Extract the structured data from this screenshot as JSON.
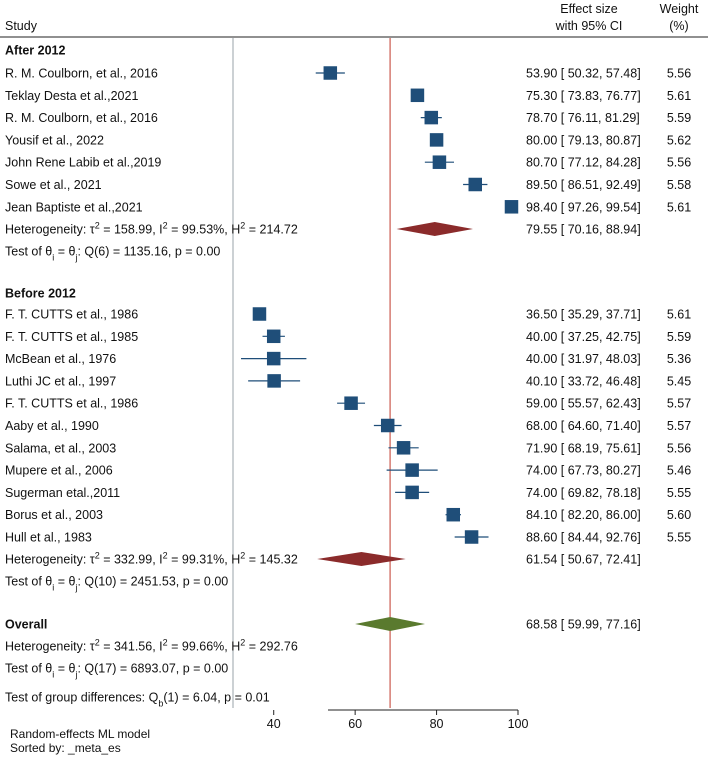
{
  "header": {
    "study": "Study",
    "effect_line1": "Effect size",
    "effect_line2": "with 95% CI",
    "weight_line1": "Weight",
    "weight_line2": "(%)"
  },
  "colors": {
    "study_box": "#1f4e79",
    "subgroup_diamond": "#8b2b2b",
    "overall_diamond": "#5a7a2e",
    "null_line": "#9aa3a8",
    "overall_line": "#c0392b"
  },
  "chart_data": {
    "type": "forest",
    "title": "",
    "xlabel": "",
    "xlim": [
      30,
      100
    ],
    "xticks": [
      40,
      60,
      80,
      100
    ],
    "null_line_x": 30,
    "overall_line_x": 68.58,
    "groups": [
      {
        "label": "After 2012",
        "studies": [
          {
            "study": "R. M. Coulborn, et al., 2016",
            "es": 53.9,
            "lo": 50.32,
            "hi": 57.48,
            "ci_text": "53.90 [ 50.32, 57.48]",
            "weight": "5.56"
          },
          {
            "study": "Teklay Desta et al.,2021",
            "es": 75.3,
            "lo": 73.83,
            "hi": 76.77,
            "ci_text": "75.30 [ 73.83, 76.77]",
            "weight": "5.61"
          },
          {
            "study": "R. M. Coulborn, et al., 2016",
            "es": 78.7,
            "lo": 76.11,
            "hi": 81.29,
            "ci_text": "78.70 [ 76.11, 81.29]",
            "weight": "5.59"
          },
          {
            "study": "Yousif et al., 2022",
            "es": 80.0,
            "lo": 79.13,
            "hi": 80.87,
            "ci_text": "80.00 [ 79.13, 80.87]",
            "weight": "5.62"
          },
          {
            "study": "John Rene Labib et al.,2019",
            "es": 80.7,
            "lo": 77.12,
            "hi": 84.28,
            "ci_text": "80.70 [ 77.12, 84.28]",
            "weight": "5.56"
          },
          {
            "study": "Sowe  et al., 2021",
            "es": 89.5,
            "lo": 86.51,
            "hi": 92.49,
            "ci_text": "89.50 [ 86.51, 92.49]",
            "weight": "5.58"
          },
          {
            "study": "Jean Baptiste et al.,2021",
            "es": 98.4,
            "lo": 97.26,
            "hi": 99.54,
            "ci_text": "98.40 [ 97.26, 99.54]",
            "weight": "5.61"
          }
        ],
        "summary": {
          "es": 79.55,
          "lo": 70.16,
          "hi": 88.94,
          "ci_text": "79.55 [ 70.16, 88.94]"
        },
        "heterogeneity": "Heterogeneity: τ² = 158.99, I² = 99.53%, H² = 214.72",
        "test": "Test of θᵢ = θⱼ: Q(6) = 1135.16, p = 0.00"
      },
      {
        "label": "Before 2012",
        "studies": [
          {
            "study": "F. T. CUTTS  et al., 1986",
            "es": 36.5,
            "lo": 35.29,
            "hi": 37.71,
            "ci_text": "36.50 [ 35.29, 37.71]",
            "weight": "5.61"
          },
          {
            "study": "F. T. CUTTS  et al., 1985",
            "es": 40.0,
            "lo": 37.25,
            "hi": 42.75,
            "ci_text": "40.00 [ 37.25, 42.75]",
            "weight": "5.59"
          },
          {
            "study": "McBean  et al., 1976",
            "es": 40.0,
            "lo": 31.97,
            "hi": 48.03,
            "ci_text": "40.00 [ 31.97, 48.03]",
            "weight": "5.36"
          },
          {
            "study": "Luthi JC et al.,  1997",
            "es": 40.1,
            "lo": 33.72,
            "hi": 46.48,
            "ci_text": "40.10 [ 33.72, 46.48]",
            "weight": "5.45"
          },
          {
            "study": "F. T. CUTTS  et al., 1986",
            "es": 59.0,
            "lo": 55.57,
            "hi": 62.43,
            "ci_text": "59.00 [ 55.57, 62.43]",
            "weight": "5.57"
          },
          {
            "study": "Aaby  et al., 1990",
            "es": 68.0,
            "lo": 64.6,
            "hi": 71.4,
            "ci_text": "68.00 [ 64.60, 71.40]",
            "weight": "5.57"
          },
          {
            "study": "Salama,  et al., 2003",
            "es": 71.9,
            "lo": 68.19,
            "hi": 75.61,
            "ci_text": "71.90 [ 68.19, 75.61]",
            "weight": "5.56"
          },
          {
            "study": "Mupere et al., 2006",
            "es": 74.0,
            "lo": 67.73,
            "hi": 80.27,
            "ci_text": "74.00 [ 67.73, 80.27]",
            "weight": "5.46"
          },
          {
            "study": "Sugerman etal.,2011",
            "es": 74.0,
            "lo": 69.82,
            "hi": 78.18,
            "ci_text": "74.00 [ 69.82, 78.18]",
            "weight": "5.55"
          },
          {
            "study": "Borus  et al., 2003",
            "es": 84.1,
            "lo": 82.2,
            "hi": 86.0,
            "ci_text": "84.10 [ 82.20, 86.00]",
            "weight": "5.60"
          },
          {
            "study": "Hull  et al., 1983",
            "es": 88.6,
            "lo": 84.44,
            "hi": 92.76,
            "ci_text": "88.60 [ 84.44, 92.76]",
            "weight": "5.55"
          }
        ],
        "summary": {
          "es": 61.54,
          "lo": 50.67,
          "hi": 72.41,
          "ci_text": "61.54 [ 50.67, 72.41]"
        },
        "heterogeneity": "Heterogeneity: τ² = 332.99, I² = 99.31%, H² = 145.32",
        "test": "Test of θᵢ = θⱼ: Q(10) = 2451.53, p = 0.00"
      }
    ],
    "overall": {
      "label": "Overall",
      "es": 68.58,
      "lo": 59.99,
      "hi": 77.16,
      "ci_text": "68.58 [ 59.99, 77.16]",
      "heterogeneity": "Heterogeneity: τ² = 341.56, I² = 99.66%, H² = 292.76",
      "test": "Test of θᵢ = θⱼ: Q(17) = 6893.07, p = 0.00"
    },
    "group_differences": "Test of group differences: Qb(1) = 6.04, p = 0.01",
    "footnotes": [
      "Random-effects ML model",
      "Sorted by: _meta_es"
    ]
  }
}
